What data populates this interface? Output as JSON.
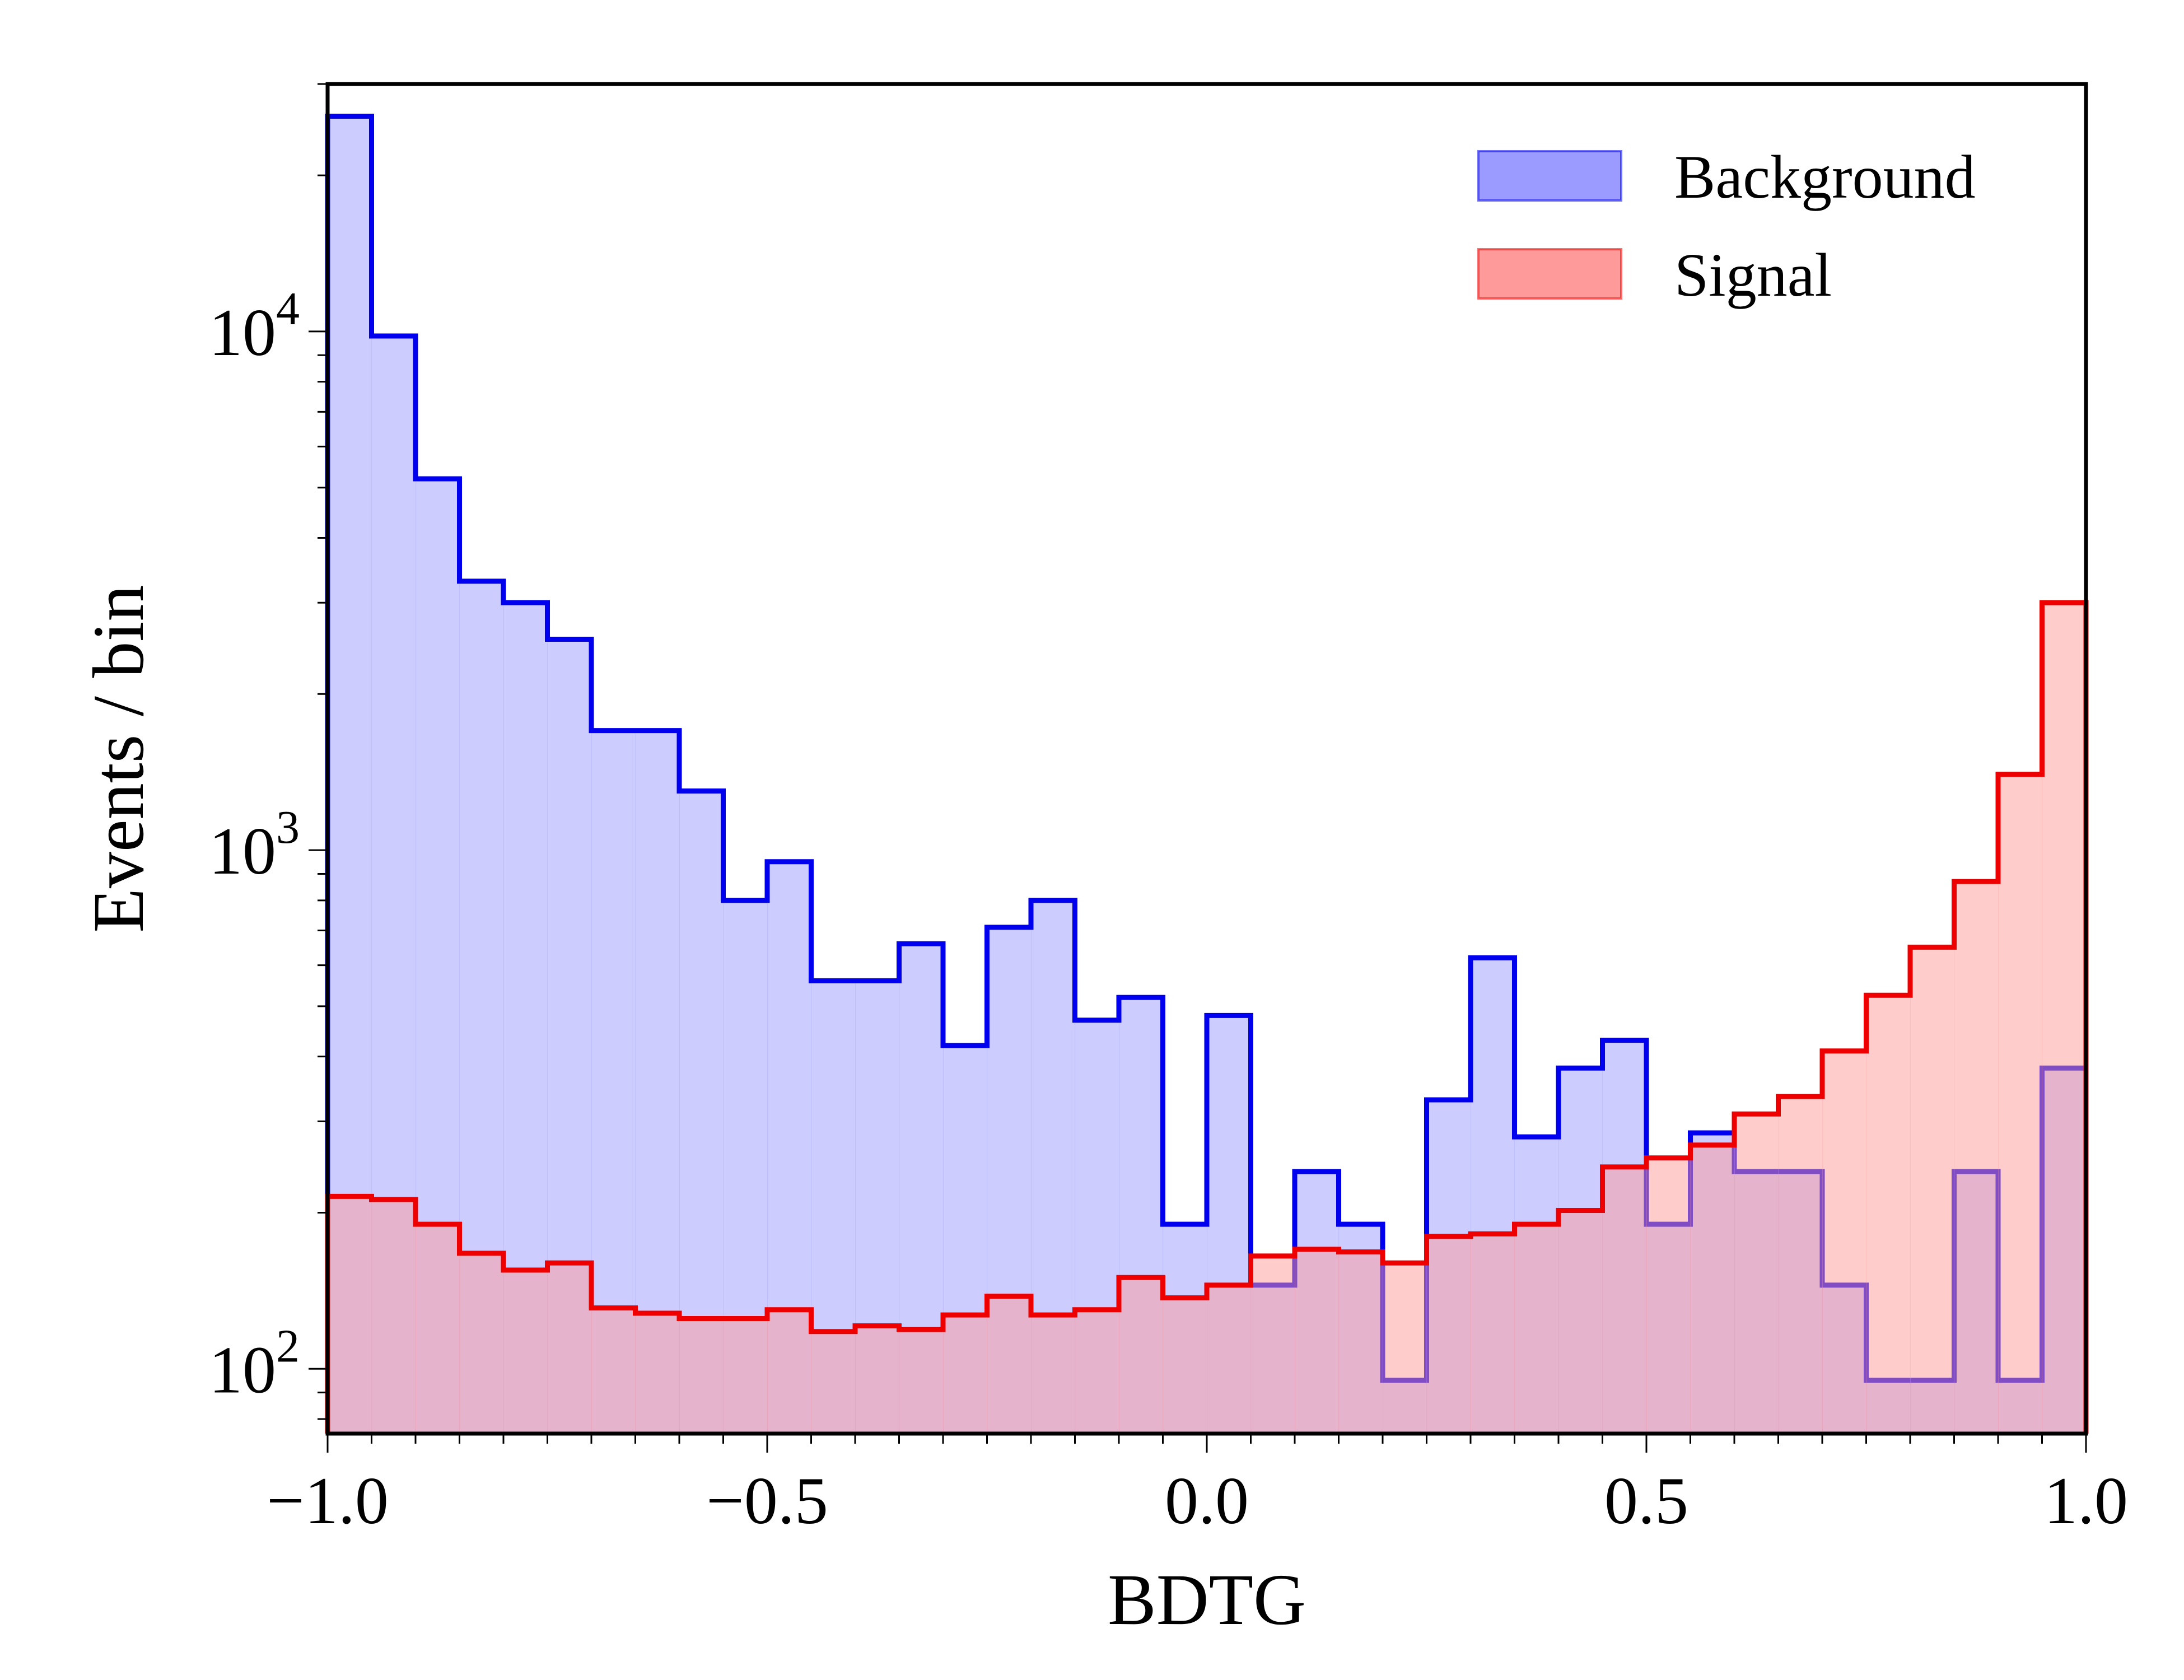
{
  "chart_data": {
    "type": "histogram",
    "xlabel": "BDTG",
    "ylabel": "Events / bin",
    "xlim": [
      -1.0,
      1.0
    ],
    "ylim": [
      75,
      30000
    ],
    "yscale": "log",
    "grid": false,
    "legend_position": "top-right",
    "x_ticks": [
      {
        "value": -1.0,
        "label": "−1.0"
      },
      {
        "value": -0.5,
        "label": "−0.5"
      },
      {
        "value": 0.0,
        "label": "0.0"
      },
      {
        "value": 0.5,
        "label": "0.5"
      },
      {
        "value": 1.0,
        "label": "1.0"
      }
    ],
    "y_ticks": [
      {
        "value": 100,
        "base": "10",
        "exp": "2"
      },
      {
        "value": 1000,
        "base": "10",
        "exp": "3"
      },
      {
        "value": 10000,
        "base": "10",
        "exp": "4"
      }
    ],
    "bin_edges": [
      -1.0,
      -0.95,
      -0.9,
      -0.85,
      -0.8,
      -0.75,
      -0.7,
      -0.65,
      -0.6,
      -0.55,
      -0.5,
      -0.45,
      -0.4,
      -0.35,
      -0.3,
      -0.25,
      -0.2,
      -0.15,
      -0.1,
      -0.05,
      0.0,
      0.05,
      0.1,
      0.15,
      0.2,
      0.25,
      0.3,
      0.35,
      0.4,
      0.45,
      0.5,
      0.55,
      0.6,
      0.65,
      0.7,
      0.75,
      0.8,
      0.85,
      0.9,
      0.95,
      1.0
    ],
    "series": [
      {
        "name": "Background",
        "fill": "#9a9aff",
        "line": "#0000ee",
        "values": [
          26000,
          9800,
          5200,
          3300,
          3000,
          2550,
          1700,
          1700,
          1300,
          800,
          950,
          560,
          560,
          660,
          420,
          710,
          800,
          470,
          520,
          190,
          480,
          145,
          240,
          190,
          95,
          330,
          620,
          280,
          380,
          430,
          190,
          285,
          240,
          240,
          145,
          95,
          95,
          240,
          95,
          380
        ]
      },
      {
        "name": "Signal",
        "fill": "#ff9a9a",
        "line": "#ee0000",
        "values": [
          215,
          212,
          190,
          167,
          155,
          160,
          131,
          128,
          125,
          125,
          130,
          118,
          121,
          119,
          127,
          138,
          127,
          130,
          150,
          137,
          145,
          165,
          170,
          168,
          160,
          180,
          182,
          190,
          202,
          245,
          255,
          270,
          310,
          335,
          410,
          525,
          650,
          870,
          1400,
          3000
        ]
      }
    ]
  }
}
